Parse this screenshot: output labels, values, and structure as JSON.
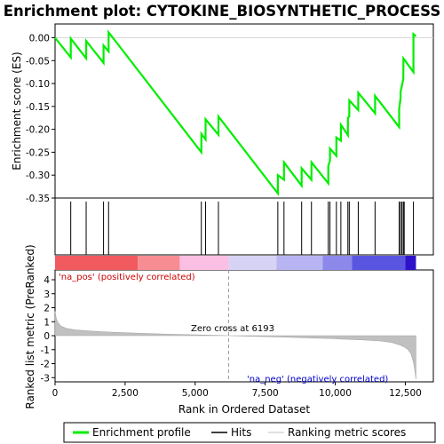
{
  "chart_data": {
    "type": "line",
    "title": "Enrichment plot: CYTOKINE_BIOSYNTHETIC_PROCESS",
    "xlabel": "Rank in Ordered Dataset",
    "xlim": [
      0,
      13500
    ],
    "x_ticks": [
      0,
      2500,
      5000,
      7500,
      10000,
      12500
    ],
    "x_tick_labels": [
      "0",
      "2,500",
      "5,000",
      "7,500",
      "10,000",
      "12,500"
    ],
    "top_panel": {
      "ylabel": "Enrichment score (ES)",
      "ylim": [
        -0.35,
        0.03
      ],
      "y_ticks": [
        0.0,
        -0.05,
        -0.1,
        -0.15,
        -0.2,
        -0.25,
        -0.3,
        -0.35
      ],
      "y_tick_labels": [
        "0.00",
        "-0.05",
        "-0.10",
        "-0.15",
        "-0.20",
        "-0.25",
        "-0.30",
        "-0.35"
      ],
      "series": [
        {
          "name": "Enrichment profile",
          "color": "#00ee00",
          "x": [
            0,
            560,
            561,
            1110,
            1111,
            1730,
            1731,
            1910,
            1911,
            5220,
            5221,
            5370,
            5371,
            5830,
            5831,
            7950,
            7951,
            8170,
            8171,
            8800,
            8801,
            9150,
            9151,
            9750,
            9751,
            9810,
            9811,
            10040,
            10041,
            10200,
            10201,
            10450,
            10451,
            10500,
            10501,
            10820,
            10821,
            11420,
            11421,
            12280,
            12281,
            12330,
            12331,
            12430,
            12431,
            12790,
            12791,
            12880
          ],
          "y": [
            0.0,
            -0.043,
            -0.002,
            -0.045,
            -0.007,
            -0.055,
            -0.017,
            -0.03,
            0.012,
            -0.25,
            -0.21,
            -0.222,
            -0.178,
            -0.212,
            -0.172,
            -0.34,
            -0.3,
            -0.31,
            -0.272,
            -0.323,
            -0.285,
            -0.31,
            -0.272,
            -0.318,
            -0.28,
            -0.268,
            -0.242,
            -0.258,
            -0.218,
            -0.225,
            -0.19,
            -0.213,
            -0.175,
            -0.172,
            -0.137,
            -0.158,
            -0.12,
            -0.165,
            -0.127,
            -0.195,
            -0.155,
            -0.132,
            -0.118,
            -0.09,
            -0.045,
            -0.075,
            0.008,
            0.003
          ]
        }
      ]
    },
    "hits": {
      "name": "Hits",
      "x": [
        560,
        1110,
        1730,
        1910,
        5220,
        5370,
        5830,
        7950,
        8170,
        8800,
        9150,
        9750,
        9810,
        10040,
        10200,
        10450,
        10500,
        10820,
        11420,
        12280,
        12330,
        12380,
        12430,
        12460,
        12790
      ]
    },
    "ranked_metric": {
      "name": "Ranking metric scores",
      "ylabel": "Ranked list metric (PreRanked)",
      "ylim": [
        -3.3,
        4.7
      ],
      "y_ticks": [
        4,
        3,
        2,
        1,
        0,
        -1,
        -2,
        -3
      ],
      "y_tick_labels": [
        "4",
        "3",
        "2",
        "1",
        "0",
        "-1",
        "-2",
        "-3"
      ],
      "x": [
        0,
        40,
        100,
        200,
        400,
        700,
        1000,
        1500,
        2000,
        3000,
        4000,
        5000,
        6193,
        7000,
        8000,
        9000,
        10000,
        11000,
        11600,
        12000,
        12300,
        12500,
        12600,
        12700,
        12750,
        12800,
        12840,
        12880
      ],
      "values": [
        1.75,
        1.25,
        0.95,
        0.7,
        0.52,
        0.42,
        0.37,
        0.3,
        0.25,
        0.17,
        0.11,
        0.06,
        0.0,
        -0.04,
        -0.09,
        -0.15,
        -0.22,
        -0.3,
        -0.38,
        -0.48,
        -0.65,
        -0.85,
        -1.0,
        -1.3,
        -1.6,
        -2.0,
        -2.5,
        -3.1
      ],
      "zero_cross_label": "Zero cross at 6193",
      "zero_cross": 6193,
      "pos_label": "'na_pos' (positively correlated)",
      "neg_label": "'na_neg' (negatively correlated)",
      "pos_color": "#ff0000",
      "neg_color": "#0000cc"
    },
    "colorbar": [
      {
        "from": 0,
        "to": 2950,
        "color": "#f15a5f"
      },
      {
        "from": 2950,
        "to": 4450,
        "color": "#f78c92"
      },
      {
        "from": 4450,
        "to": 6200,
        "color": "#fbbfe3"
      },
      {
        "from": 6200,
        "to": 7900,
        "color": "#d7d3f5"
      },
      {
        "from": 7900,
        "to": 9550,
        "color": "#b8b5f2"
      },
      {
        "from": 9550,
        "to": 10600,
        "color": "#8d89ea"
      },
      {
        "from": 10600,
        "to": 12500,
        "color": "#5a55e0"
      },
      {
        "from": 12500,
        "to": 12880,
        "color": "#2e12c9"
      }
    ],
    "legend": [
      {
        "label": "Enrichment profile",
        "color": "#00ee00"
      },
      {
        "label": "Hits",
        "color": "#000000"
      },
      {
        "label": "Ranking metric scores",
        "color": "#c0c0c0"
      }
    ]
  }
}
